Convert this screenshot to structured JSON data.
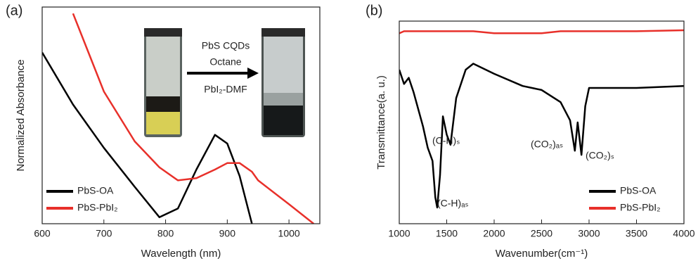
{
  "chart_data": [
    {
      "type": "line",
      "panel": "(a)",
      "x_label": "Wavelength (nm)",
      "y_label": "Normalized Absorbance",
      "x": [
        600,
        650,
        700,
        750,
        790,
        820,
        850,
        880,
        900,
        920,
        940,
        950,
        1000,
        1040
      ],
      "series": [
        {
          "name": "PbS-OA",
          "color": "#000000",
          "values": [
            0.79,
            0.55,
            0.35,
            0.17,
            0.03,
            0.07,
            0.25,
            0.41,
            0.37,
            0.22,
            0.0,
            null,
            null,
            null
          ]
        },
        {
          "name": "PbS-PbI₂",
          "color": "#e8302a",
          "values": [
            null,
            0.97,
            0.61,
            0.38,
            0.26,
            0.2,
            0.21,
            0.25,
            0.28,
            0.28,
            0.24,
            0.2,
            0.09,
            0.0
          ]
        }
      ],
      "xlim": [
        600,
        1050
      ],
      "xticks": [
        600,
        700,
        800,
        900,
        1000
      ],
      "ylim": [
        0,
        1
      ],
      "legend": "lower left",
      "annotations": [
        "PbS CQDs",
        "Octane",
        "PbI₂-DMF"
      ]
    },
    {
      "type": "line",
      "panel": "(b)",
      "x_label": "Wavenumber(cm⁻¹)",
      "y_label": "Transmittance(a. u.)",
      "x": [
        1000,
        1050,
        1100,
        1150,
        1250,
        1300,
        1350,
        1380,
        1400,
        1430,
        1460,
        1500,
        1540,
        1600,
        1700,
        1780,
        2000,
        2300,
        2500,
        2700,
        2800,
        2850,
        2880,
        2920,
        2960,
        3000,
        3500,
        4000
      ],
      "series": [
        {
          "name": "PbS-OA",
          "color": "#000000",
          "values": [
            0.76,
            0.69,
            0.72,
            0.65,
            0.48,
            0.375,
            0.31,
            0.13,
            0.08,
            0.24,
            0.53,
            0.44,
            0.39,
            0.62,
            0.76,
            0.79,
            0.74,
            0.68,
            0.66,
            0.6,
            0.51,
            0.36,
            0.5,
            0.34,
            0.58,
            0.67,
            0.67,
            0.68
          ]
        },
        {
          "name": "PbS-PbI₂",
          "color": "#e8302a",
          "values": [
            0.94,
            0.95,
            0.95,
            0.95,
            0.95,
            0.95,
            0.95,
            0.95,
            0.95,
            0.95,
            0.95,
            0.95,
            0.95,
            0.95,
            0.95,
            0.95,
            0.94,
            0.94,
            0.94,
            0.95,
            0.95,
            0.95,
            0.95,
            0.95,
            0.95,
            0.95,
            0.95,
            0.955
          ]
        }
      ],
      "xlim": [
        1000,
        4000
      ],
      "xticks": [
        1000,
        1500,
        2000,
        2500,
        3000,
        3500,
        4000
      ],
      "ylim": [
        0,
        1
      ],
      "legend": "lower right",
      "annotations": [
        "(C-H)ₛ",
        "(C-H)ₐₛ",
        "(CO₂)ₐₛ",
        "(CO₂)ₛ"
      ]
    }
  ]
}
